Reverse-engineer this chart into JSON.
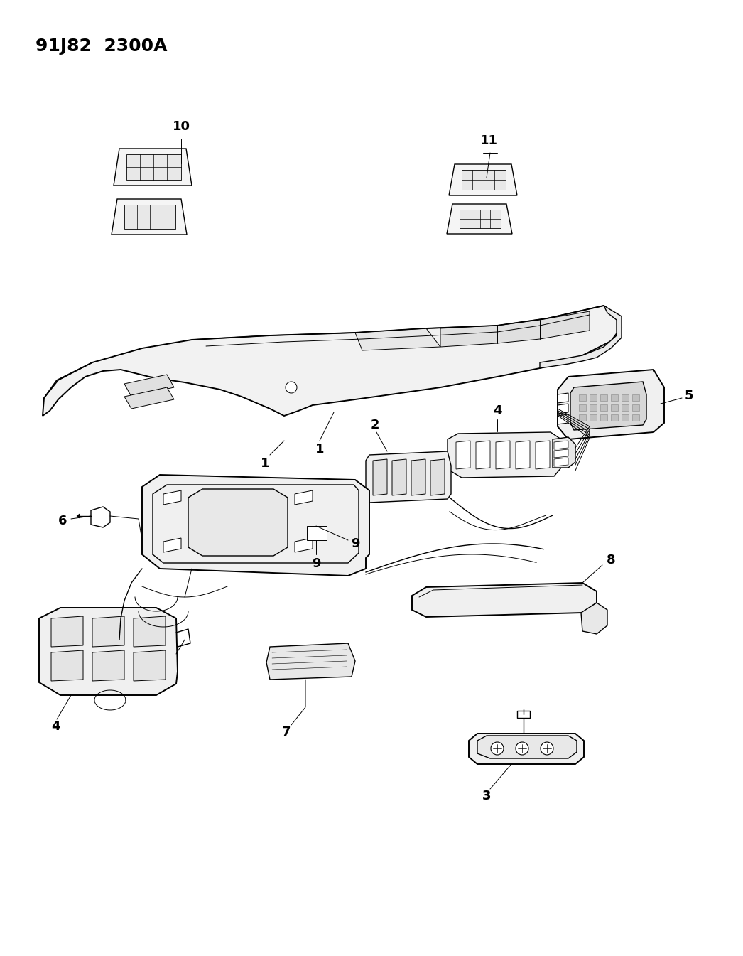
{
  "title": "91J82  2300A",
  "bg_color": "#ffffff",
  "line_color": "#000000",
  "fig_width": 10.46,
  "fig_height": 13.45,
  "dpi": 100
}
